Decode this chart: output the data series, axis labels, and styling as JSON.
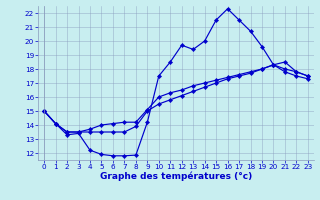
{
  "title": "Graphe des températures (°c)",
  "bg_color": "#c8eef0",
  "plot_bg_color": "#c8eef0",
  "line_color": "#0000cc",
  "grid_color": "#8899bb",
  "xlim": [
    -0.5,
    23.5
  ],
  "ylim": [
    11.5,
    22.5
  ],
  "xticks": [
    0,
    1,
    2,
    3,
    4,
    5,
    6,
    7,
    8,
    9,
    10,
    11,
    12,
    13,
    14,
    15,
    16,
    17,
    18,
    19,
    20,
    21,
    22,
    23
  ],
  "yticks": [
    12,
    13,
    14,
    15,
    16,
    17,
    18,
    19,
    20,
    21,
    22
  ],
  "line1_x": [
    0,
    1,
    2,
    3,
    4,
    5,
    6,
    7,
    8,
    9,
    10,
    11,
    12,
    13,
    14,
    15,
    16,
    17,
    18,
    19,
    20,
    21,
    22,
    23
  ],
  "line1_y": [
    15,
    14.1,
    13.3,
    13.4,
    12.2,
    11.9,
    11.8,
    11.8,
    11.85,
    14.2,
    17.5,
    18.5,
    19.7,
    19.4,
    20.0,
    21.5,
    22.3,
    21.5,
    20.7,
    19.6,
    18.3,
    18.0,
    17.8,
    17.5
  ],
  "line2_x": [
    0,
    1,
    2,
    3,
    4,
    5,
    6,
    7,
    8,
    9,
    10,
    11,
    12,
    13,
    14,
    15,
    16,
    17,
    18,
    19,
    20,
    21,
    22,
    23
  ],
  "line2_y": [
    15,
    14.1,
    13.5,
    13.5,
    13.5,
    13.5,
    13.5,
    13.5,
    13.9,
    15.0,
    15.5,
    15.8,
    16.1,
    16.4,
    16.7,
    17.0,
    17.3,
    17.5,
    17.7,
    18.0,
    18.3,
    18.5,
    17.8,
    17.5
  ],
  "line3_x": [
    0,
    1,
    2,
    3,
    4,
    5,
    6,
    7,
    8,
    9,
    10,
    11,
    12,
    13,
    14,
    15,
    16,
    17,
    18,
    19,
    20,
    21,
    22,
    23
  ],
  "line3_y": [
    15,
    14.1,
    13.5,
    13.5,
    13.7,
    14.0,
    14.1,
    14.2,
    14.2,
    15.1,
    16.0,
    16.3,
    16.5,
    16.8,
    17.0,
    17.2,
    17.4,
    17.6,
    17.8,
    18.0,
    18.3,
    17.8,
    17.5,
    17.3
  ],
  "ylabel_fontsize": 5.5,
  "xlabel_fontsize": 6.5,
  "tick_fontsize": 5.2,
  "marker_size": 2.2,
  "line_width": 0.85
}
